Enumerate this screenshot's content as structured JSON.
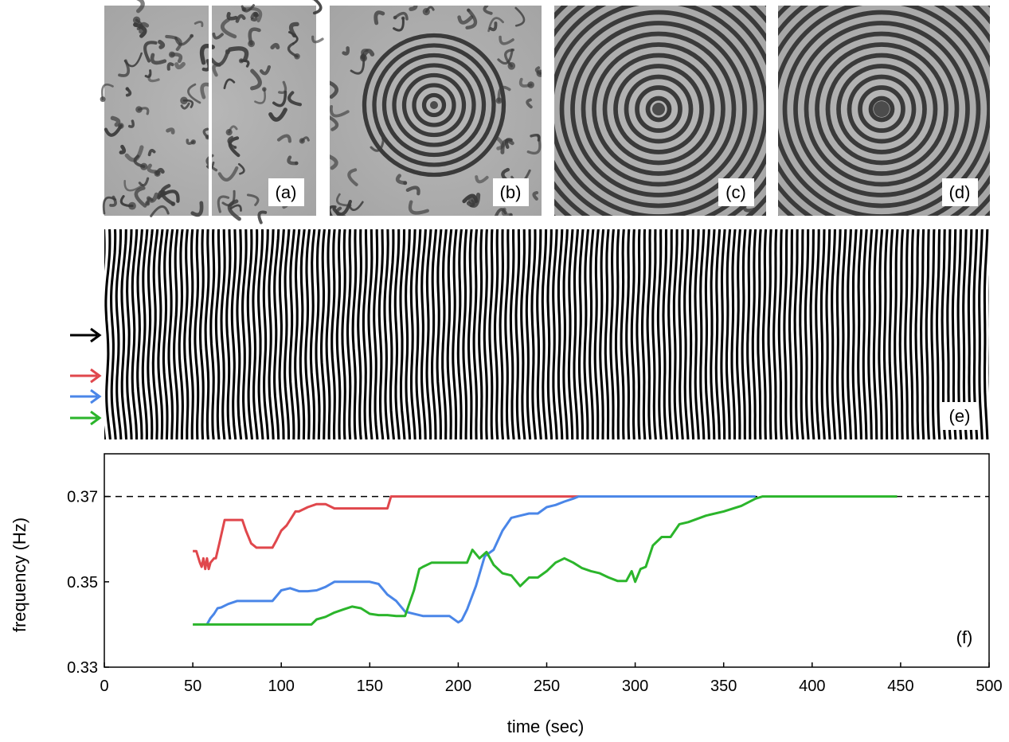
{
  "panels": {
    "a": "(a)",
    "b": "(b)",
    "c": "(c)",
    "d": "(d)",
    "e": "(e)",
    "f": "(f)"
  },
  "colors": {
    "red": "#e0474c",
    "blue": "#4a86e8",
    "green": "#2bb52b",
    "black": "#000000",
    "pattern_dark": "#3a3a3a",
    "pattern_light": "#a9a9a9"
  },
  "chart_data": {
    "type": "line",
    "title": "",
    "xlabel": "time (sec)",
    "ylabel": "frequency (Hz)",
    "xlim": [
      0,
      500
    ],
    "ylim": [
      0.33,
      0.38
    ],
    "xticks": [
      "0",
      "50",
      "100",
      "150",
      "200",
      "250",
      "300",
      "350",
      "400",
      "450",
      "500"
    ],
    "xtick_values": [
      0,
      50,
      100,
      150,
      200,
      250,
      300,
      350,
      400,
      450,
      500
    ],
    "yticks": [
      "0.33",
      "0.35",
      "0.37"
    ],
    "ytick_values": [
      0.33,
      0.35,
      0.37
    ],
    "reference_line": {
      "y": 0.37,
      "style": "dashed",
      "color": "#000000"
    },
    "series": [
      {
        "color": "#e0474c",
        "x": [
          50,
          52,
          54,
          55,
          56,
          57,
          58,
          59,
          60,
          62,
          63,
          65,
          68,
          70,
          78,
          80,
          83,
          86,
          90,
          95,
          97,
          100,
          103,
          108,
          110,
          115,
          120,
          125,
          130,
          140,
          150,
          160,
          162,
          170,
          180,
          200,
          220,
          250,
          268
        ],
        "y": [
          0.3572,
          0.3572,
          0.3545,
          0.3535,
          0.3555,
          0.353,
          0.3555,
          0.353,
          0.3545,
          0.3555,
          0.3555,
          0.359,
          0.3645,
          0.3645,
          0.3645,
          0.362,
          0.359,
          0.358,
          0.358,
          0.358,
          0.3595,
          0.362,
          0.3632,
          0.3665,
          0.3665,
          0.3675,
          0.3682,
          0.3682,
          0.3672,
          0.3672,
          0.3672,
          0.3672,
          0.37,
          0.37,
          0.37,
          0.37,
          0.37,
          0.37,
          0.37
        ]
      },
      {
        "color": "#4a86e8",
        "x": [
          58,
          60,
          62,
          64,
          66,
          70,
          75,
          80,
          95,
          98,
          100,
          105,
          110,
          115,
          120,
          125,
          130,
          140,
          150,
          155,
          160,
          165,
          170,
          180,
          190,
          195,
          200,
          202,
          205,
          210,
          215,
          220,
          225,
          230,
          235,
          240,
          245,
          250,
          255,
          260,
          265,
          268,
          300,
          330,
          360,
          368
        ],
        "y": [
          0.34,
          0.3415,
          0.3425,
          0.3438,
          0.344,
          0.3448,
          0.3455,
          0.3455,
          0.3455,
          0.347,
          0.348,
          0.3485,
          0.3478,
          0.3478,
          0.348,
          0.3488,
          0.35,
          0.35,
          0.35,
          0.3495,
          0.347,
          0.3455,
          0.343,
          0.342,
          0.342,
          0.342,
          0.3405,
          0.341,
          0.3435,
          0.349,
          0.356,
          0.3575,
          0.362,
          0.365,
          0.3655,
          0.366,
          0.366,
          0.3675,
          0.368,
          0.3688,
          0.3695,
          0.37,
          0.37,
          0.37,
          0.37,
          0.37
        ]
      },
      {
        "color": "#2bb52b",
        "x": [
          50,
          80,
          100,
          117,
          120,
          125,
          130,
          135,
          140,
          145,
          150,
          155,
          160,
          165,
          170,
          172,
          175,
          178,
          180,
          185,
          190,
          195,
          200,
          205,
          208,
          212,
          216,
          220,
          225,
          230,
          235,
          240,
          245,
          250,
          255,
          260,
          265,
          270,
          275,
          280,
          285,
          290,
          295,
          298,
          300,
          303,
          306,
          310,
          315,
          320,
          325,
          330,
          340,
          350,
          360,
          368,
          372,
          400,
          430,
          448
        ],
        "y": [
          0.34,
          0.34,
          0.34,
          0.34,
          0.3412,
          0.3418,
          0.3428,
          0.3435,
          0.3442,
          0.3438,
          0.3425,
          0.3422,
          0.3422,
          0.342,
          0.342,
          0.3445,
          0.348,
          0.353,
          0.3535,
          0.3545,
          0.3545,
          0.3545,
          0.3545,
          0.3545,
          0.3575,
          0.3555,
          0.357,
          0.354,
          0.352,
          0.3515,
          0.349,
          0.351,
          0.351,
          0.3525,
          0.3545,
          0.3555,
          0.3545,
          0.3532,
          0.3525,
          0.352,
          0.351,
          0.3502,
          0.3502,
          0.3525,
          0.35,
          0.353,
          0.3535,
          0.3585,
          0.3605,
          0.3605,
          0.3635,
          0.364,
          0.3655,
          0.3665,
          0.3678,
          0.3695,
          0.37,
          0.37,
          0.37,
          0.37
        ]
      }
    ]
  }
}
